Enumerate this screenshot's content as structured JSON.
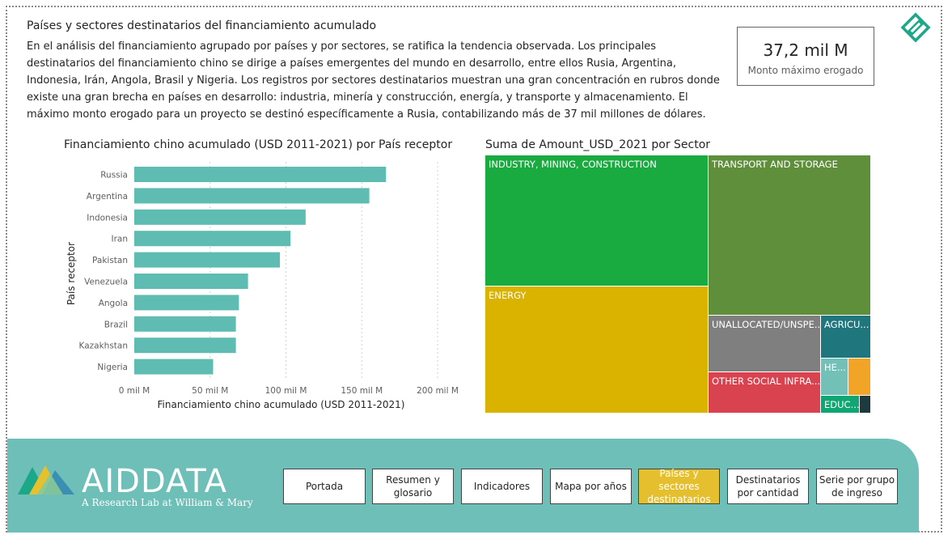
{
  "page": {
    "title": "Países y sectores destinatarios del financiamiento acumulado",
    "description": "En el análisis del financiamiento agrupado por países y por sectores, se ratifica la tendencia observada. Los principales destinatarios del financiamiento chino se dirige a países emergentes del mundo en desarrollo, entre ellos Rusia, Argentina, Indonesia, Irán, Angola, Brasil y Nigeria. Los registros por sectores destinatarios muestran una gran concentración en rubros donde existe una gran brecha en países en desarrollo: industria, minería y construcción, energía, y transporte y almacenamiento. El máximo monto erogado para un proyecto se destinó específicamente a Rusia, contabilizando más de 37 mil millones de dólares."
  },
  "kpi": {
    "value": "37,2 mil M",
    "label": "Monto máximo erogado"
  },
  "icons": {
    "corner": "diamond-icon",
    "logo": "aiddata-logo-icon"
  },
  "colors": {
    "bar": "#5fbcb3",
    "teal_bg": "#6dbfb7",
    "active_nav": "#e6bf2e"
  },
  "chart_data": [
    {
      "type": "bar",
      "orientation": "horizontal",
      "title": "Financiamiento chino acumulado (USD 2011-2021) por País receptor",
      "xlabel": "Financiamiento chino acumulado (USD 2011-2021)",
      "ylabel": "País receptor",
      "categories": [
        "Russia",
        "Argentina",
        "Indonesia",
        "Iran",
        "Pakistan",
        "Venezuela",
        "Angola",
        "Brazil",
        "Kazakhstan",
        "Nigeria"
      ],
      "values": [
        166,
        155,
        113,
        103,
        96,
        75,
        69,
        67,
        67,
        52
      ],
      "unit": "mil M",
      "xlim": [
        0,
        200
      ],
      "xticks": [
        "0 mil M",
        "50 mil M",
        "100 mil M",
        "150 mil M",
        "200 mil M"
      ],
      "grid": true
    },
    {
      "type": "treemap",
      "title": "Suma de Amount_USD_2021 por Sector",
      "items": [
        {
          "label": "INDUSTRY, MINING, CONSTRUCTION",
          "color": "#1aab40"
        },
        {
          "label": "TRANSPORT AND STORAGE",
          "color": "#5f8f3a"
        },
        {
          "label": "ENERGY",
          "color": "#d9b300"
        },
        {
          "label": "UNALLOCATED/UNSPE...",
          "color": "#7f7f7f"
        },
        {
          "label": "AGRICU...",
          "color": "#1f767c"
        },
        {
          "label": "OTHER SOCIAL INFRA...",
          "color": "#d9434f"
        },
        {
          "label": "HE...",
          "color": "#72c0b8"
        },
        {
          "label": "",
          "color": "#f2a427"
        },
        {
          "label": "EDUC...",
          "color": "#10a674"
        },
        {
          "label": "",
          "color": "#1d3a3f"
        }
      ]
    }
  ],
  "brand": {
    "name": "AIDDATA",
    "tagline": "A Research Lab at William & Mary"
  },
  "nav": [
    {
      "label": "Portada"
    },
    {
      "label": "Resumen y glosario"
    },
    {
      "label": "Indicadores"
    },
    {
      "label": "Mapa por años"
    },
    {
      "label": "Países y sectores destinatarios"
    },
    {
      "label": "Destinatarios por cantidad"
    },
    {
      "label": "Serie por grupo de ingreso"
    }
  ]
}
